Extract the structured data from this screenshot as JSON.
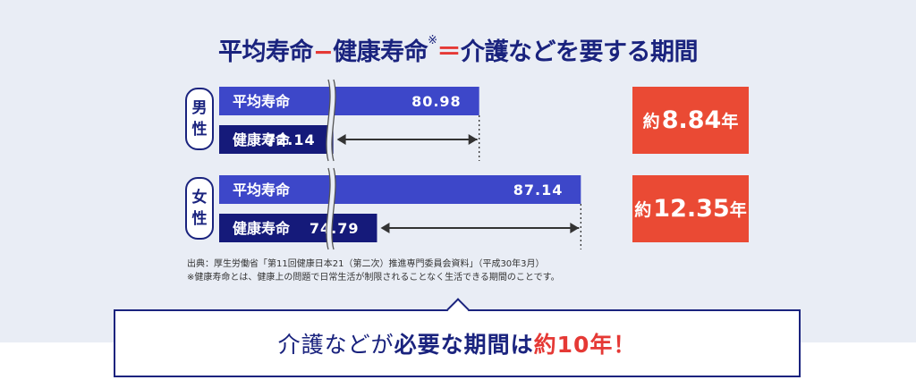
{
  "title": {
    "part1": "平均寿命",
    "minus": "−",
    "part2": "健康寿命",
    "note_mark": "※",
    "equals": "＝",
    "part3": "介護などを要する期間"
  },
  "genders": [
    {
      "label_top": "男",
      "label_bottom": "性"
    },
    {
      "label_top": "女",
      "label_bottom": "性"
    }
  ],
  "chart_data": {
    "type": "bar",
    "orientation": "horizontal",
    "axis_break": true,
    "categories": [
      "男性",
      "女性"
    ],
    "series": [
      {
        "name": "平均寿命",
        "values": [
          80.98,
          87.14
        ],
        "color": "#3d47c9"
      },
      {
        "name": "健康寿命",
        "values": [
          72.14,
          74.79
        ],
        "color": "#151a7a"
      }
    ],
    "differences": [
      {
        "prefix": "約",
        "value": "8.84",
        "unit": "年"
      },
      {
        "prefix": "約",
        "value": "12.35",
        "unit": "年"
      }
    ],
    "colors": {
      "difference_box": "#ea4a34"
    }
  },
  "notes": {
    "source": "出典：厚生労働省「第11回健康日本21（第二次）推進専門委員会資料」（平成30年3月）",
    "definition": "※健康寿命とは、健康上の問題で日常生活が制限されることなく生活できる期間のことです。"
  },
  "callout": {
    "part1": "介護などが",
    "part2": "必要な期間は",
    "part3": "約10年！"
  }
}
